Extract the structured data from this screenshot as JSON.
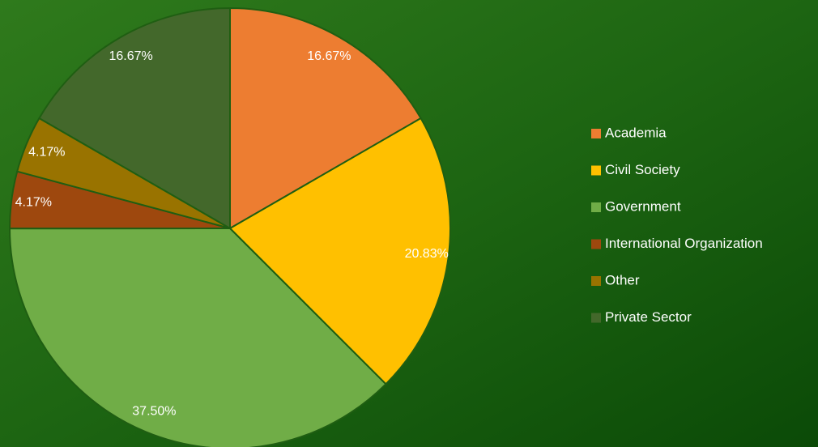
{
  "chart_data": {
    "type": "pie",
    "categories": [
      "Academia",
      "Civil Society",
      "Government",
      "International Organization",
      "Other",
      "Private Sector"
    ],
    "values": [
      16.67,
      20.83,
      37.5,
      4.17,
      4.17,
      16.67
    ],
    "value_labels": [
      "16.67%",
      "20.83%",
      "37.50%",
      "4.17%",
      "4.17%",
      "16.67%"
    ],
    "colors": [
      "#ed7d31",
      "#ffc000",
      "#70ad47",
      "#9e480e",
      "#997300",
      "#43682b"
    ],
    "legend": "right"
  }
}
